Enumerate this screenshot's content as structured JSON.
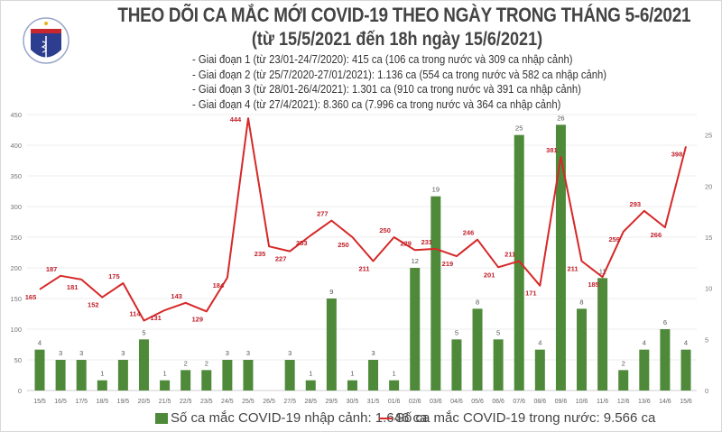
{
  "logo_text": "BỘ Y TẾ · MINISTRY OF HEALTH",
  "title": "THEO DÕI CA MẮC MỚI COVID-19 THEO NGÀY TRONG THÁNG 5-6/2021",
  "subtitle": "(từ 15/5/2021 đến 18h ngày 15/6/2021)",
  "phases": [
    "- Giai đoạn 1 (từ 23/01-24/7/2020): 415 ca (106 ca trong nước và 309 ca nhập cảnh)",
    "- Giai đoạn 2 (từ 25/7/2020-27/01/2021): 1.136 ca (554 ca trong nước và 582 ca nhập cảnh)",
    "- Giai đoạn 3 (từ 28/01-26/4/2021): 1.301 ca (910 ca trong nước và 391 ca nhập cảnh)",
    "- Giai đoạn 4 (từ 27/4/2021): 8.360 ca (7.996 ca trong nước và 364 ca nhập cảnh)"
  ],
  "chart_data": {
    "type": "bar+line",
    "categories": [
      "15/5",
      "16/5",
      "17/5",
      "18/5",
      "19/5",
      "20/5",
      "21/5",
      "22/5",
      "23/5",
      "24/5",
      "25/5",
      "26/5",
      "27/5",
      "28/5",
      "29/5",
      "30/5",
      "31/5",
      "01/6",
      "02/6",
      "03/6",
      "04/6",
      "05/6",
      "06/6",
      "07/6",
      "08/6",
      "09/6",
      "10/6",
      "11/6",
      "12/6",
      "13/6",
      "14/6",
      "15/6"
    ],
    "series": [
      {
        "name": "Số ca mắc COVID-19 nhập cảnh: 1.646 ca",
        "type": "bar",
        "axis": "right",
        "color": "#4f8a3a",
        "values": [
          4,
          3,
          3,
          1,
          3,
          5,
          1,
          2,
          2,
          3,
          3,
          0,
          3,
          1,
          9,
          1,
          3,
          1,
          12,
          19,
          5,
          8,
          5,
          25,
          4,
          26,
          8,
          11,
          2,
          4,
          6,
          4
        ]
      },
      {
        "name": "Số ca mắc COVID-19 trong nước: 9.566 ca",
        "type": "line",
        "axis": "left",
        "color": "#d62828",
        "values": [
          165,
          187,
          181,
          152,
          175,
          114,
          131,
          143,
          129,
          184,
          444,
          235,
          227,
          253,
          277,
          250,
          211,
          250,
          229,
          231,
          219,
          246,
          201,
          211,
          171,
          381,
          211,
          185,
          259,
          293,
          266,
          398
        ]
      }
    ],
    "left_axis": {
      "ylim": [
        0,
        450
      ],
      "ticks": [
        0,
        50,
        100,
        150,
        200,
        250,
        300,
        350,
        400,
        450
      ]
    },
    "right_axis": {
      "ylim": [
        0,
        27
      ],
      "ticks": [
        0,
        5,
        10,
        15,
        20,
        25
      ]
    },
    "grid": true,
    "legend": "bottom"
  }
}
